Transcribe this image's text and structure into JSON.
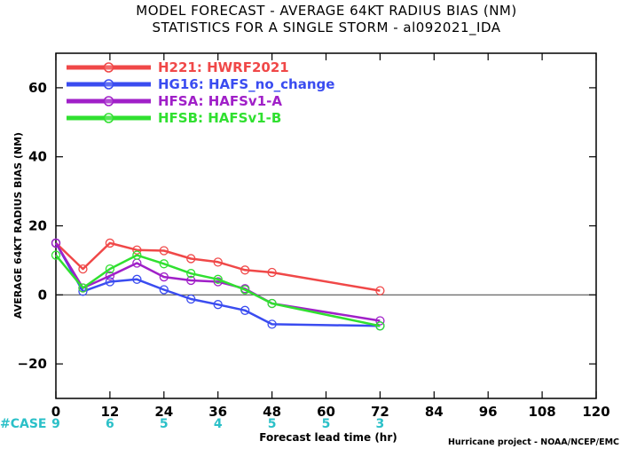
{
  "chart_data": {
    "type": "line",
    "title": "MODEL FORECAST - AVERAGE 64KT RADIUS BIAS (NM)",
    "subtitle": "STATISTICS FOR A SINGLE STORM - al092021_IDA",
    "xlabel": "Forecast lead time (hr)",
    "ylabel": "AVERAGE 64KT RADIUS BIAS (NM)",
    "xlim": [
      0,
      120
    ],
    "ylim": [
      -30,
      70
    ],
    "xticks": [
      0,
      12,
      24,
      36,
      48,
      60,
      72,
      84,
      96,
      108,
      120
    ],
    "yticks": [
      -20,
      0,
      20,
      40,
      60
    ],
    "zero_line": true,
    "grid": false,
    "legend_position": "top-left",
    "cases_label": "#CASE",
    "cases": [
      {
        "x": 0,
        "n": "9"
      },
      {
        "x": 12,
        "n": "6"
      },
      {
        "x": 24,
        "n": "5"
      },
      {
        "x": 36,
        "n": "4"
      },
      {
        "x": 48,
        "n": "5"
      },
      {
        "x": 60,
        "n": "5"
      },
      {
        "x": 72,
        "n": "3"
      }
    ],
    "credit": "Hurricane project - NOAA/NCEP/EMC",
    "series": [
      {
        "name": "H221: HWRF2021",
        "color": "#f04848",
        "x": [
          0,
          6,
          12,
          18,
          24,
          30,
          36,
          42,
          48,
          72
        ],
        "y": [
          15,
          7.5,
          15,
          13,
          12.8,
          10.5,
          9.5,
          7.2,
          6.5,
          1.2
        ]
      },
      {
        "name": "HG16: HAFS_no_change",
        "color": "#3a4cf0",
        "x": [
          0,
          6,
          12,
          18,
          24,
          30,
          36,
          42,
          48,
          72
        ],
        "y": [
          15,
          1,
          3.8,
          4.5,
          1.5,
          -1.2,
          -2.8,
          -4.5,
          -8.5,
          -9
        ]
      },
      {
        "name": "HFSA: HAFSv1-A",
        "color": "#a020c8",
        "x": [
          0,
          6,
          12,
          18,
          24,
          30,
          36,
          42,
          48,
          72
        ],
        "y": [
          15,
          2,
          5.5,
          9.2,
          5.2,
          4.2,
          3.8,
          1.8,
          -2.5,
          -7.5
        ]
      },
      {
        "name": "HFSB: HAFSv1-B",
        "color": "#30e030",
        "x": [
          0,
          6,
          12,
          18,
          24,
          30,
          36,
          42,
          48,
          72
        ],
        "y": [
          11.5,
          2,
          7.5,
          11.5,
          9,
          6.2,
          4.5,
          1.5,
          -2.5,
          -9
        ]
      }
    ]
  }
}
